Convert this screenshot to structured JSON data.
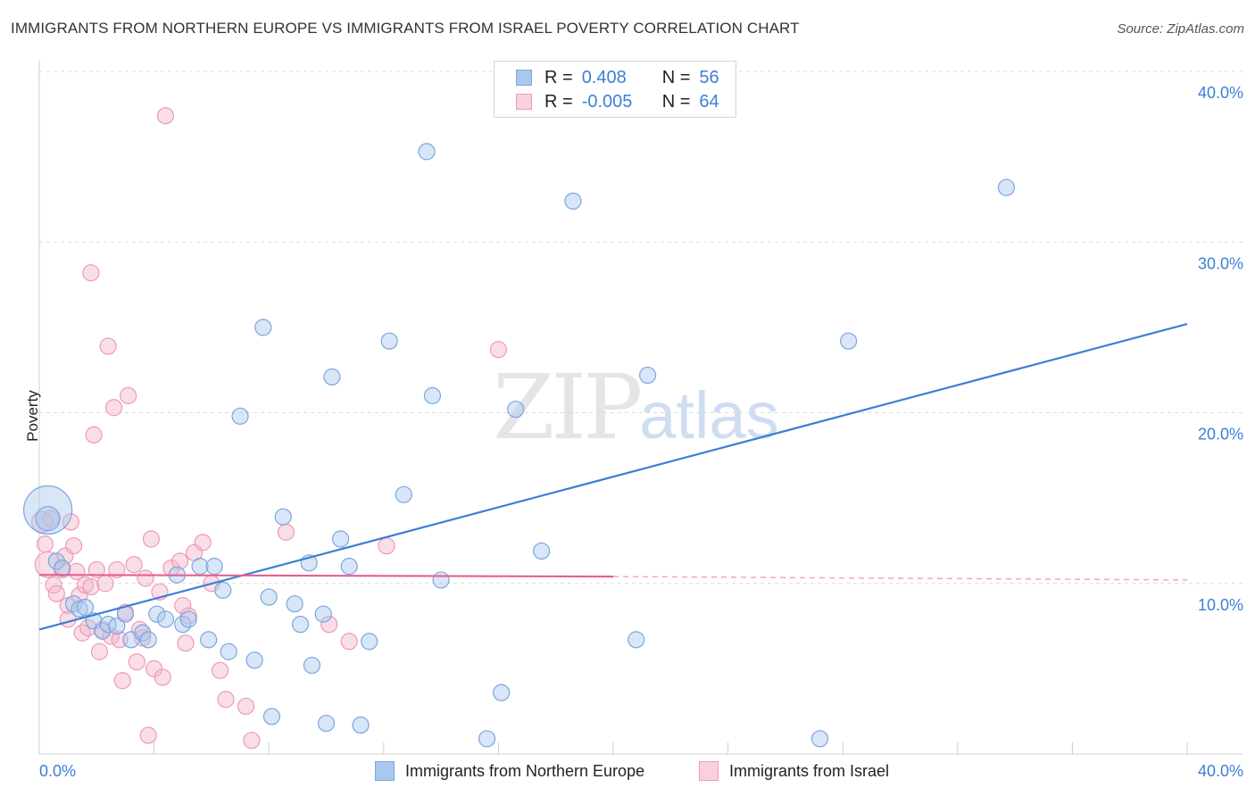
{
  "title": "IMMIGRANTS FROM NORTHERN EUROPE VS IMMIGRANTS FROM ISRAEL POVERTY CORRELATION CHART",
  "source": "Source: ZipAtlas.com",
  "watermark": {
    "zip": "ZIP",
    "atlas": "atlas"
  },
  "colors": {
    "blue": "#3d7fd6",
    "blue_fill": "#a9c8ee",
    "blue_stroke": "#7aa6de",
    "pink": "#e8608c",
    "pink_fill": "#f4b6c9",
    "pink_stroke": "#ee9ab5",
    "grid": "#dcdcdc",
    "axis_label": "#3d7fd6"
  },
  "legend_top": {
    "rows": [
      {
        "r_label": "R =",
        "r_value": "0.408",
        "n_label": "N =",
        "n_value": "56"
      },
      {
        "r_label": "R =",
        "r_value": "-0.005",
        "n_label": "N =",
        "n_value": "64"
      }
    ]
  },
  "legend_bottom": {
    "items": [
      {
        "label": "Immigrants from Northern Europe"
      },
      {
        "label": "Immigrants from Israel"
      }
    ]
  },
  "chart_data": {
    "type": "scatter",
    "title": "IMMIGRANTS FROM NORTHERN EUROPE VS IMMIGRANTS FROM ISRAEL POVERTY CORRELATION CHART",
    "xlabel": "",
    "ylabel": "Poverty",
    "xlim": [
      0,
      40
    ],
    "ylim": [
      0,
      40
    ],
    "x_tick_labels": [
      "0.0%",
      "40.0%"
    ],
    "y_ticks": [
      10,
      20,
      30,
      40
    ],
    "y_tick_labels": [
      "10.0%",
      "20.0%",
      "30.0%",
      "40.0%"
    ],
    "grid": true,
    "legend_position": "top-center",
    "series": [
      {
        "name": "Immigrants from Northern Europe",
        "color": "#3d7fd6",
        "R": 0.408,
        "N": 56,
        "trend": {
          "x": [
            0,
            40
          ],
          "y": [
            7.3,
            25.2
          ],
          "style": "solid"
        },
        "points": [
          {
            "x": 0.3,
            "y": 14.3,
            "size": 3
          },
          {
            "x": 0.3,
            "y": 13.8,
            "size": 1.5
          },
          {
            "x": 0.6,
            "y": 11.3,
            "size": 1
          },
          {
            "x": 0.8,
            "y": 10.9,
            "size": 1
          },
          {
            "x": 1.2,
            "y": 8.8,
            "size": 1
          },
          {
            "x": 1.4,
            "y": 8.5,
            "size": 1
          },
          {
            "x": 1.6,
            "y": 8.6,
            "size": 1
          },
          {
            "x": 1.9,
            "y": 7.8,
            "size": 1
          },
          {
            "x": 2.2,
            "y": 7.2,
            "size": 1
          },
          {
            "x": 2.4,
            "y": 7.6,
            "size": 1
          },
          {
            "x": 2.7,
            "y": 7.5,
            "size": 1
          },
          {
            "x": 3.0,
            "y": 8.2,
            "size": 1
          },
          {
            "x": 3.2,
            "y": 6.7,
            "size": 1
          },
          {
            "x": 3.6,
            "y": 7.1,
            "size": 1
          },
          {
            "x": 3.8,
            "y": 6.7,
            "size": 1
          },
          {
            "x": 4.1,
            "y": 8.2,
            "size": 1
          },
          {
            "x": 4.4,
            "y": 7.9,
            "size": 1
          },
          {
            "x": 4.8,
            "y": 10.5,
            "size": 1
          },
          {
            "x": 5.0,
            "y": 7.6,
            "size": 1
          },
          {
            "x": 5.2,
            "y": 7.9,
            "size": 1
          },
          {
            "x": 5.6,
            "y": 11.0,
            "size": 1
          },
          {
            "x": 5.9,
            "y": 6.7,
            "size": 1
          },
          {
            "x": 6.1,
            "y": 11.0,
            "size": 1
          },
          {
            "x": 6.4,
            "y": 9.6,
            "size": 1
          },
          {
            "x": 6.6,
            "y": 6.0,
            "size": 1
          },
          {
            "x": 7.0,
            "y": 19.8,
            "size": 1
          },
          {
            "x": 7.5,
            "y": 5.5,
            "size": 1
          },
          {
            "x": 7.8,
            "y": 25.0,
            "size": 1
          },
          {
            "x": 8.0,
            "y": 9.2,
            "size": 1
          },
          {
            "x": 8.1,
            "y": 2.2,
            "size": 1
          },
          {
            "x": 8.5,
            "y": 13.9,
            "size": 1
          },
          {
            "x": 8.9,
            "y": 8.8,
            "size": 1
          },
          {
            "x": 9.1,
            "y": 7.6,
            "size": 1
          },
          {
            "x": 9.4,
            "y": 11.2,
            "size": 1
          },
          {
            "x": 9.5,
            "y": 5.2,
            "size": 1
          },
          {
            "x": 9.9,
            "y": 8.2,
            "size": 1
          },
          {
            "x": 10.0,
            "y": 1.8,
            "size": 1
          },
          {
            "x": 10.2,
            "y": 22.1,
            "size": 1
          },
          {
            "x": 10.5,
            "y": 12.6,
            "size": 1
          },
          {
            "x": 10.8,
            "y": 11.0,
            "size": 1
          },
          {
            "x": 11.2,
            "y": 1.7,
            "size": 1
          },
          {
            "x": 11.5,
            "y": 6.6,
            "size": 1
          },
          {
            "x": 12.2,
            "y": 24.2,
            "size": 1
          },
          {
            "x": 12.7,
            "y": 15.2,
            "size": 1
          },
          {
            "x": 13.5,
            "y": 35.3,
            "size": 1
          },
          {
            "x": 13.7,
            "y": 21.0,
            "size": 1
          },
          {
            "x": 14.0,
            "y": 10.2,
            "size": 1
          },
          {
            "x": 15.6,
            "y": 0.9,
            "size": 1
          },
          {
            "x": 16.1,
            "y": 3.6,
            "size": 1
          },
          {
            "x": 16.6,
            "y": 20.2,
            "size": 1
          },
          {
            "x": 17.5,
            "y": 11.9,
            "size": 1
          },
          {
            "x": 18.6,
            "y": 32.4,
            "size": 1
          },
          {
            "x": 20.8,
            "y": 6.7,
            "size": 1
          },
          {
            "x": 21.2,
            "y": 22.2,
            "size": 1
          },
          {
            "x": 27.2,
            "y": 0.9,
            "size": 1
          },
          {
            "x": 28.2,
            "y": 24.2,
            "size": 1
          },
          {
            "x": 33.7,
            "y": 33.2,
            "size": 1
          }
        ]
      },
      {
        "name": "Immigrants from Israel",
        "color": "#e8608c",
        "R": -0.005,
        "N": 64,
        "trend": {
          "x": [
            0,
            20
          ],
          "y": [
            10.5,
            10.4
          ],
          "style": "solid",
          "extension": {
            "x": [
              20,
              40
            ],
            "y": [
              10.4,
              10.2
            ],
            "style": "dashed"
          }
        },
        "points": [
          {
            "x": 0.1,
            "y": 13.6,
            "size": 1.3
          },
          {
            "x": 0.2,
            "y": 12.3,
            "size": 1
          },
          {
            "x": 0.3,
            "y": 11.1,
            "size": 1.6
          },
          {
            "x": 0.4,
            "y": 13.8,
            "size": 1
          },
          {
            "x": 0.5,
            "y": 9.9,
            "size": 1
          },
          {
            "x": 0.6,
            "y": 9.4,
            "size": 1
          },
          {
            "x": 0.8,
            "y": 10.8,
            "size": 1
          },
          {
            "x": 0.9,
            "y": 11.6,
            "size": 1
          },
          {
            "x": 1.0,
            "y": 8.7,
            "size": 1
          },
          {
            "x": 1.0,
            "y": 7.9,
            "size": 1
          },
          {
            "x": 1.1,
            "y": 13.6,
            "size": 1
          },
          {
            "x": 1.2,
            "y": 12.2,
            "size": 1
          },
          {
            "x": 1.3,
            "y": 10.7,
            "size": 1
          },
          {
            "x": 1.4,
            "y": 9.3,
            "size": 1
          },
          {
            "x": 1.5,
            "y": 7.1,
            "size": 1
          },
          {
            "x": 1.6,
            "y": 9.9,
            "size": 1
          },
          {
            "x": 1.7,
            "y": 7.4,
            "size": 1
          },
          {
            "x": 1.8,
            "y": 9.8,
            "size": 1
          },
          {
            "x": 1.8,
            "y": 28.2,
            "size": 1
          },
          {
            "x": 1.9,
            "y": 18.7,
            "size": 1
          },
          {
            "x": 2.0,
            "y": 10.8,
            "size": 1
          },
          {
            "x": 2.1,
            "y": 6.0,
            "size": 1
          },
          {
            "x": 2.2,
            "y": 7.3,
            "size": 1
          },
          {
            "x": 2.3,
            "y": 10.0,
            "size": 1
          },
          {
            "x": 2.4,
            "y": 23.9,
            "size": 1
          },
          {
            "x": 2.5,
            "y": 6.9,
            "size": 1
          },
          {
            "x": 2.6,
            "y": 20.3,
            "size": 1
          },
          {
            "x": 2.7,
            "y": 10.8,
            "size": 1
          },
          {
            "x": 2.8,
            "y": 6.7,
            "size": 1
          },
          {
            "x": 2.9,
            "y": 4.3,
            "size": 1
          },
          {
            "x": 3.0,
            "y": 8.3,
            "size": 1
          },
          {
            "x": 3.1,
            "y": 21.0,
            "size": 1
          },
          {
            "x": 3.3,
            "y": 11.1,
            "size": 1
          },
          {
            "x": 3.4,
            "y": 5.4,
            "size": 1
          },
          {
            "x": 3.5,
            "y": 7.3,
            "size": 1
          },
          {
            "x": 3.6,
            "y": 6.8,
            "size": 1
          },
          {
            "x": 3.7,
            "y": 10.3,
            "size": 1
          },
          {
            "x": 3.8,
            "y": 1.1,
            "size": 1
          },
          {
            "x": 3.9,
            "y": 12.6,
            "size": 1
          },
          {
            "x": 4.0,
            "y": 5.0,
            "size": 1
          },
          {
            "x": 4.2,
            "y": 9.5,
            "size": 1
          },
          {
            "x": 4.3,
            "y": 4.5,
            "size": 1
          },
          {
            "x": 4.4,
            "y": 37.4,
            "size": 1
          },
          {
            "x": 4.6,
            "y": 10.9,
            "size": 1
          },
          {
            "x": 4.9,
            "y": 11.3,
            "size": 1
          },
          {
            "x": 5.0,
            "y": 8.7,
            "size": 1
          },
          {
            "x": 5.1,
            "y": 6.5,
            "size": 1
          },
          {
            "x": 5.2,
            "y": 8.1,
            "size": 1
          },
          {
            "x": 5.4,
            "y": 11.8,
            "size": 1
          },
          {
            "x": 5.7,
            "y": 12.4,
            "size": 1
          },
          {
            "x": 6.0,
            "y": 10.0,
            "size": 1
          },
          {
            "x": 6.3,
            "y": 4.9,
            "size": 1
          },
          {
            "x": 6.5,
            "y": 3.2,
            "size": 1
          },
          {
            "x": 7.2,
            "y": 2.8,
            "size": 1
          },
          {
            "x": 7.4,
            "y": 0.8,
            "size": 1
          },
          {
            "x": 8.6,
            "y": 13.0,
            "size": 1
          },
          {
            "x": 10.1,
            "y": 7.6,
            "size": 1
          },
          {
            "x": 10.8,
            "y": 6.6,
            "size": 1
          },
          {
            "x": 12.1,
            "y": 12.2,
            "size": 1
          },
          {
            "x": 16.0,
            "y": 23.7,
            "size": 1
          }
        ]
      }
    ]
  }
}
